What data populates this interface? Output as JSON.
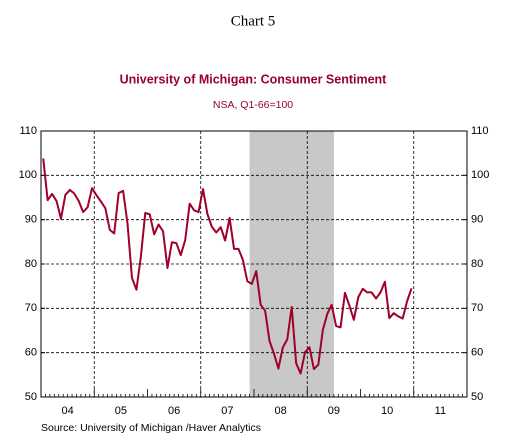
{
  "chart_data": {
    "type": "line",
    "heading": "Chart 5",
    "title": "University of Michigan: Consumer Sentiment",
    "subtitle": "NSA, Q1-66=100",
    "source": "Source:  University of Michigan /Haver Analytics",
    "title_color": "#990033",
    "xlim": [
      2004,
      2012
    ],
    "xticks": [
      {
        "value": 2004.5,
        "label": "04"
      },
      {
        "value": 2005.5,
        "label": "05"
      },
      {
        "value": 2006.5,
        "label": "06"
      },
      {
        "value": 2007.5,
        "label": "07"
      },
      {
        "value": 2008.5,
        "label": "08"
      },
      {
        "value": 2009.5,
        "label": "09"
      },
      {
        "value": 2010.5,
        "label": "10"
      },
      {
        "value": 2011.5,
        "label": "11"
      }
    ],
    "x_gridlines": [
      2005,
      2007,
      2009,
      2011
    ],
    "ylim": [
      50,
      110
    ],
    "yticks": [
      50,
      60,
      70,
      80,
      90,
      100,
      110
    ],
    "grid": true,
    "shaded_regions": [
      {
        "start": 2007.917,
        "end": 2009.5,
        "color": "#c8c8c8"
      }
    ],
    "x": [
      2004.042,
      2004.125,
      2004.208,
      2004.292,
      2004.375,
      2004.458,
      2004.542,
      2004.625,
      2004.708,
      2004.792,
      2004.875,
      2004.958,
      2005.042,
      2005.125,
      2005.208,
      2005.292,
      2005.375,
      2005.458,
      2005.542,
      2005.625,
      2005.708,
      2005.792,
      2005.875,
      2005.958,
      2006.042,
      2006.125,
      2006.208,
      2006.292,
      2006.375,
      2006.458,
      2006.542,
      2006.625,
      2006.708,
      2006.792,
      2006.875,
      2006.958,
      2007.042,
      2007.125,
      2007.208,
      2007.292,
      2007.375,
      2007.458,
      2007.542,
      2007.625,
      2007.708,
      2007.792,
      2007.875,
      2007.958,
      2008.042,
      2008.125,
      2008.208,
      2008.292,
      2008.375,
      2008.458,
      2008.542,
      2008.625,
      2008.708,
      2008.792,
      2008.875,
      2008.958,
      2009.042,
      2009.125,
      2009.208,
      2009.292,
      2009.375,
      2009.458,
      2009.542,
      2009.625,
      2009.708,
      2009.792,
      2009.875,
      2009.958,
      2010.042,
      2010.125,
      2010.208,
      2010.292,
      2010.375,
      2010.458,
      2010.542,
      2010.625,
      2010.708,
      2010.792,
      2010.875,
      2010.958
    ],
    "series": [
      {
        "name": "Consumer Sentiment",
        "color": "#a0002a",
        "values": [
          103.8,
          94.4,
          95.8,
          94.2,
          90.2,
          95.6,
          96.7,
          95.9,
          94.2,
          91.7,
          92.8,
          97.1,
          95.5,
          94.1,
          92.6,
          87.7,
          86.9,
          96.0,
          96.5,
          89.1,
          76.9,
          74.2,
          81.6,
          91.5,
          91.2,
          86.7,
          88.9,
          87.4,
          79.1,
          84.9,
          84.7,
          82.0,
          85.4,
          93.6,
          92.1,
          91.7,
          96.9,
          91.3,
          88.4,
          87.1,
          88.3,
          85.3,
          90.4,
          83.4,
          83.4,
          80.9,
          76.1,
          75.5,
          78.4,
          70.8,
          69.5,
          62.6,
          59.8,
          56.4,
          61.2,
          63.0,
          70.3,
          57.6,
          55.3,
          60.1,
          61.2,
          56.3,
          57.3,
          65.1,
          68.7,
          70.8,
          66.0,
          65.7,
          73.5,
          70.6,
          67.4,
          72.5,
          74.4,
          73.6,
          73.6,
          72.2,
          73.6,
          76.0,
          67.8,
          68.9,
          68.2,
          67.7,
          71.6,
          74.5
        ]
      }
    ]
  }
}
